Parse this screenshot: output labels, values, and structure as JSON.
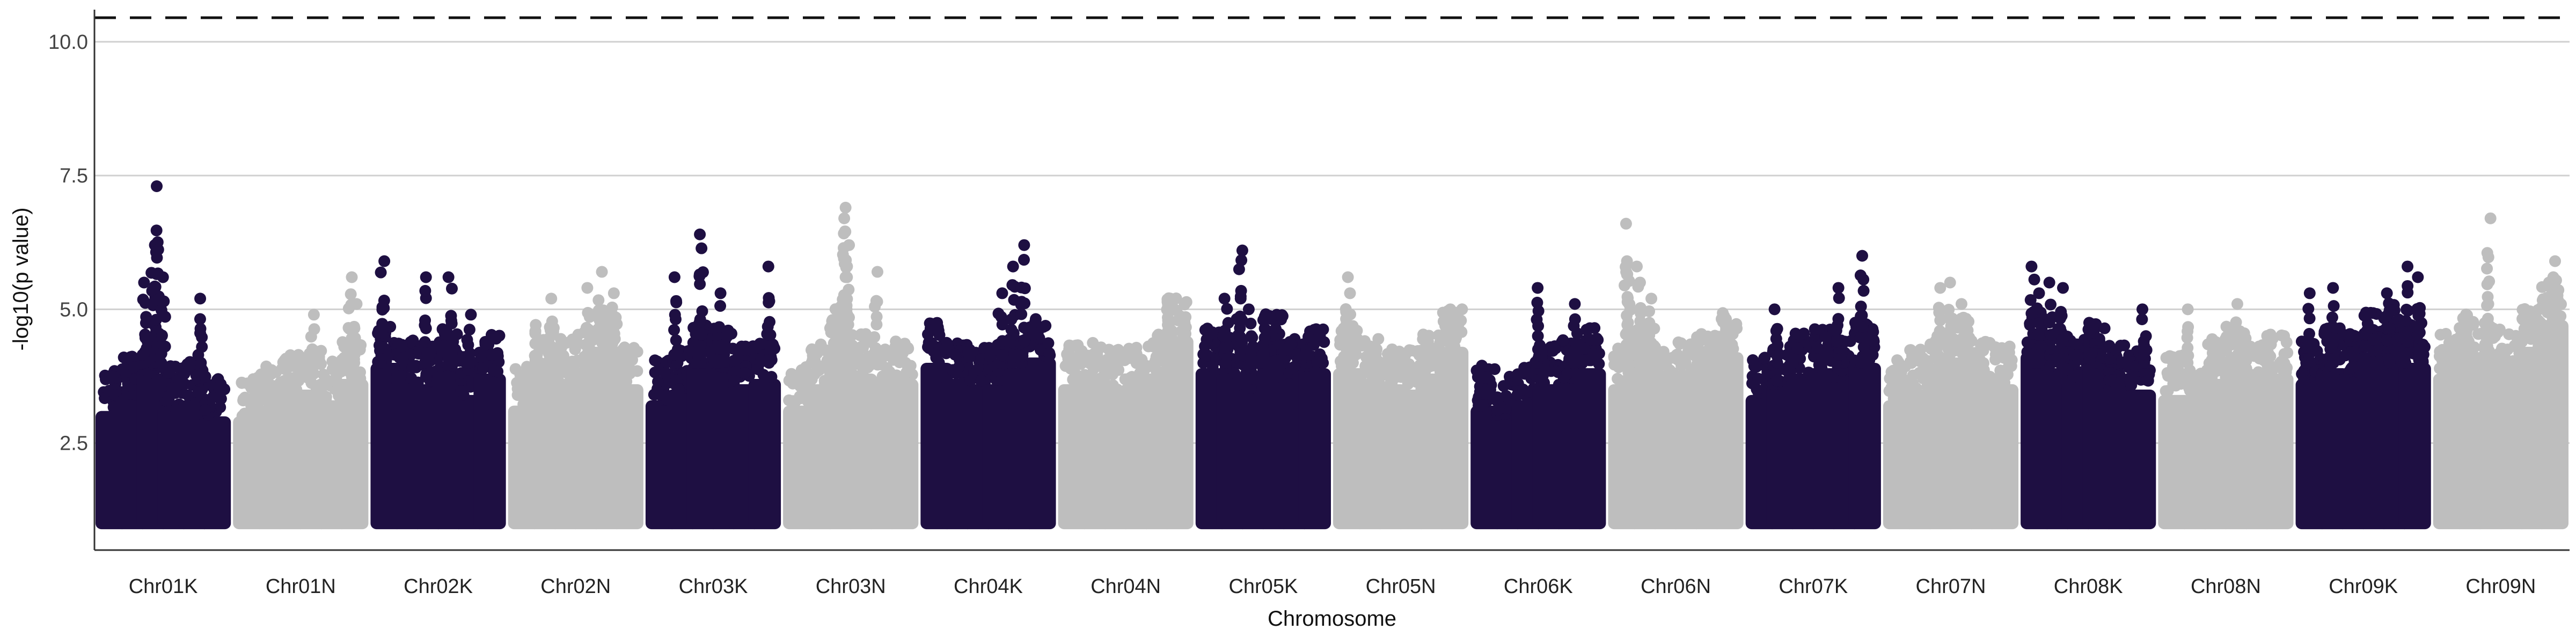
{
  "chart_data": {
    "type": "scatter",
    "title": "",
    "xlabel": "Chromosome",
    "ylabel": "-log10(p value)",
    "ylim": [
      0.5,
      10.6
    ],
    "y_ticks": [
      "2.5",
      "5.0",
      "7.5",
      "10.0"
    ],
    "grid": "horizontal major lines",
    "significance_threshold": 10.45,
    "colors": {
      "odd": "#1e0f42",
      "even": "#bebebe",
      "threshold": "#111111",
      "grid": "#d0d0d0"
    },
    "categories": [
      "Chr01K",
      "Chr01N",
      "Chr02K",
      "Chr02N",
      "Chr03K",
      "Chr03N",
      "Chr04K",
      "Chr04N",
      "Chr05K",
      "Chr05N",
      "Chr06K",
      "Chr06N",
      "Chr07K",
      "Chr07N",
      "Chr08K",
      "Chr08N",
      "Chr09K",
      "Chr09N"
    ],
    "series": [
      {
        "chromosome": "Chr01K",
        "color": "odd",
        "baseline": [
          3.7,
          4.0,
          4.4,
          3.8,
          3.9,
          3.6
        ],
        "peaks": [
          [
            0.35,
            5.5
          ],
          [
            0.42,
            6.2
          ],
          [
            0.45,
            7.3
          ],
          [
            0.5,
            5.6
          ],
          [
            0.8,
            5.2
          ]
        ]
      },
      {
        "chromosome": "Chr01N",
        "color": "even",
        "baseline": [
          3.6,
          3.8,
          4.0,
          4.1,
          3.9,
          4.3
        ],
        "peaks": [
          [
            0.6,
            4.9
          ],
          [
            0.9,
            5.6
          ],
          [
            0.95,
            5.1
          ]
        ]
      },
      {
        "chromosome": "Chr02K",
        "color": "odd",
        "baseline": [
          4.6,
          4.3,
          4.2,
          4.5,
          4.0,
          4.4
        ],
        "peaks": [
          [
            0.05,
            5.9
          ],
          [
            0.4,
            5.6
          ],
          [
            0.6,
            5.6
          ],
          [
            0.75,
            4.9
          ]
        ]
      },
      {
        "chromosome": "Chr02N",
        "color": "even",
        "baseline": [
          3.8,
          4.6,
          4.3,
          4.5,
          4.9,
          4.2
        ],
        "peaks": [
          [
            0.3,
            5.2
          ],
          [
            0.6,
            5.4
          ],
          [
            0.7,
            5.7
          ],
          [
            0.8,
            5.3
          ]
        ]
      },
      {
        "chromosome": "Chr03K",
        "color": "odd",
        "baseline": [
          3.9,
          4.1,
          4.6,
          4.5,
          4.2,
          4.3
        ],
        "peaks": [
          [
            0.2,
            5.6
          ],
          [
            0.4,
            6.4
          ],
          [
            0.55,
            5.3
          ],
          [
            0.95,
            5.8
          ]
        ]
      },
      {
        "chromosome": "Chr03N",
        "color": "even",
        "baseline": [
          3.8,
          4.2,
          4.9,
          4.4,
          4.1,
          4.3
        ],
        "peaks": [
          [
            0.45,
            6.9
          ],
          [
            0.46,
            6.7
          ],
          [
            0.47,
            6.2
          ],
          [
            0.7,
            5.7
          ]
        ]
      },
      {
        "chromosome": "Chr04K",
        "color": "odd",
        "baseline": [
          4.6,
          4.3,
          4.2,
          4.2,
          4.5,
          4.7
        ],
        "peaks": [
          [
            0.6,
            5.3
          ],
          [
            0.7,
            5.8
          ],
          [
            0.78,
            6.2
          ]
        ]
      },
      {
        "chromosome": "Chr04N",
        "color": "even",
        "baseline": [
          4.2,
          4.3,
          4.1,
          4.2,
          4.4,
          5.1
        ],
        "peaks": [
          [
            0.85,
            5.2
          ]
        ]
      },
      {
        "chromosome": "Chr05K",
        "color": "odd",
        "baseline": [
          4.5,
          4.4,
          4.1,
          4.8,
          4.3,
          4.5
        ],
        "peaks": [
          [
            0.2,
            5.2
          ],
          [
            0.3,
            5.2
          ],
          [
            0.32,
            6.1
          ],
          [
            0.4,
            5.0
          ],
          [
            0.5,
            4.8
          ]
        ]
      },
      {
        "chromosome": "Chr05N",
        "color": "even",
        "baseline": [
          4.5,
          4.3,
          4.2,
          4.1,
          4.4,
          4.9
        ],
        "peaks": [
          [
            0.06,
            5.6
          ],
          [
            0.1,
            5.3
          ],
          [
            0.9,
            5.0
          ]
        ]
      },
      {
        "chromosome": "Chr06K",
        "color": "odd",
        "baseline": [
          3.8,
          3.6,
          3.9,
          4.2,
          4.3,
          4.5
        ],
        "peaks": [
          [
            0.5,
            5.4
          ],
          [
            0.8,
            5.1
          ]
        ]
      },
      {
        "chromosome": "Chr06N",
        "color": "even",
        "baseline": [
          4.2,
          4.5,
          4.1,
          4.3,
          4.4,
          4.8
        ],
        "peaks": [
          [
            0.1,
            6.6
          ],
          [
            0.12,
            5.9
          ],
          [
            0.2,
            5.8
          ],
          [
            0.3,
            5.2
          ]
        ]
      },
      {
        "chromosome": "Chr07K",
        "color": "odd",
        "baseline": [
          4.0,
          4.2,
          4.4,
          4.5,
          4.3,
          4.6
        ],
        "peaks": [
          [
            0.2,
            5.0
          ],
          [
            0.7,
            5.4
          ],
          [
            0.9,
            6.0
          ]
        ]
      },
      {
        "chromosome": "Chr07N",
        "color": "even",
        "baseline": [
          3.9,
          4.1,
          4.5,
          4.7,
          4.3,
          4.2
        ],
        "peaks": [
          [
            0.4,
            5.4
          ],
          [
            0.5,
            5.5
          ],
          [
            0.6,
            5.1
          ]
        ]
      },
      {
        "chromosome": "Chr08K",
        "color": "odd",
        "baseline": [
          4.8,
          4.5,
          4.3,
          4.6,
          4.2,
          4.1
        ],
        "peaks": [
          [
            0.05,
            5.8
          ],
          [
            0.1,
            5.3
          ],
          [
            0.2,
            5.5
          ],
          [
            0.28,
            5.4
          ],
          [
            0.95,
            5.0
          ]
        ]
      },
      {
        "chromosome": "Chr08N",
        "color": "even",
        "baseline": [
          4.0,
          3.8,
          4.3,
          4.6,
          4.2,
          4.4
        ],
        "peaks": [
          [
            0.2,
            5.0
          ],
          [
            0.6,
            5.1
          ]
        ]
      },
      {
        "chromosome": "Chr09K",
        "color": "odd",
        "baseline": [
          4.3,
          4.5,
          4.4,
          4.8,
          5.0,
          4.6
        ],
        "peaks": [
          [
            0.05,
            5.3
          ],
          [
            0.25,
            5.4
          ],
          [
            0.7,
            5.3
          ],
          [
            0.85,
            5.8
          ],
          [
            0.95,
            5.6
          ]
        ]
      },
      {
        "chromosome": "Chr09N",
        "color": "even",
        "baseline": [
          4.4,
          4.8,
          4.6,
          4.5,
          4.9,
          5.4
        ],
        "peaks": [
          [
            0.4,
            6.7
          ],
          [
            0.95,
            5.9
          ],
          [
            0.92,
            5.6
          ]
        ]
      }
    ]
  }
}
